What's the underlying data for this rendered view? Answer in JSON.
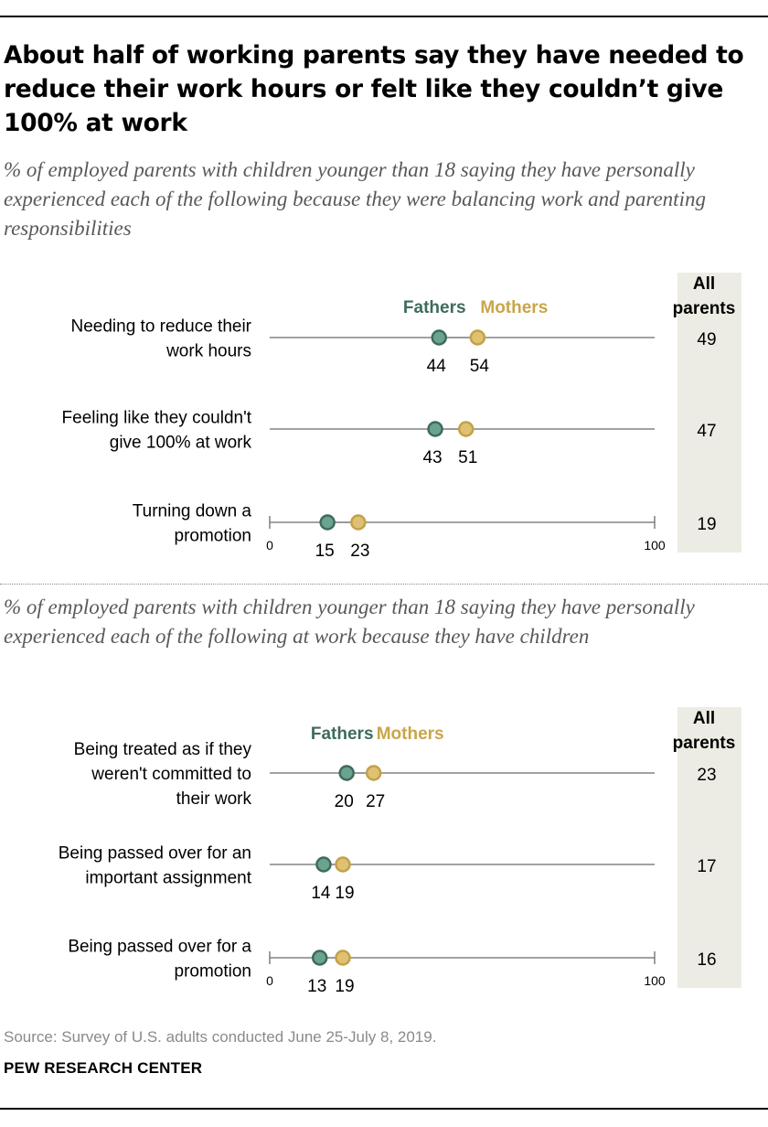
{
  "title": "About half of working parents say they have needed to reduce their work hours or felt like they couldn’t give 100% at work",
  "source": "Source: Survey of U.S. adults conducted June 25-July 8, 2019.",
  "brand": "PEW RESEARCH CENTER",
  "colors": {
    "fathers_fill": "#6aa38e",
    "fathers_stroke": "#3e6b5c",
    "fathers_label": "#3f6b5c",
    "mothers_fill": "#e0c174",
    "mothers_stroke": "#c2a148",
    "mothers_label": "#c9a54a",
    "line": "#6b6b6b",
    "all_parents_bg": "#ecece4"
  },
  "chart_data": [
    {
      "type": "dot-plot",
      "subtitle": "% of employed parents with children younger than 18 saying they have personally experienced each of the following because they were balancing work and parenting responsibilities",
      "legend": [
        "Fathers",
        "Mothers"
      ],
      "all_header": [
        "All",
        "parents"
      ],
      "xlim": [
        0,
        100
      ],
      "ticks": [
        "0",
        "100"
      ],
      "categories": [
        [
          "Needing to reduce their",
          "work hours"
        ],
        [
          "Feeling like they couldn't",
          "give 100% at work"
        ],
        [
          "Turning down a",
          "promotion"
        ]
      ],
      "series": [
        {
          "name": "Fathers",
          "values": [
            44,
            43,
            15
          ]
        },
        {
          "name": "Mothers",
          "values": [
            54,
            51,
            23
          ]
        }
      ],
      "all_parents": [
        49,
        47,
        19
      ]
    },
    {
      "type": "dot-plot",
      "subtitle": "% of employed parents with children younger than 18 saying they have personally experienced each of the following at work because they have children",
      "legend": [
        "Fathers",
        "Mothers"
      ],
      "all_header": [
        "All",
        "parents"
      ],
      "xlim": [
        0,
        100
      ],
      "ticks": [
        "0",
        "100"
      ],
      "categories": [
        [
          "Being treated as if they",
          "weren't committed to",
          "their work"
        ],
        [
          "Being passed over for an",
          "important assignment"
        ],
        [
          "Being passed over for a",
          "promotion"
        ]
      ],
      "series": [
        {
          "name": "Fathers",
          "values": [
            20,
            14,
            13
          ]
        },
        {
          "name": "Mothers",
          "values": [
            27,
            19,
            19
          ]
        }
      ],
      "all_parents": [
        23,
        17,
        16
      ]
    }
  ]
}
